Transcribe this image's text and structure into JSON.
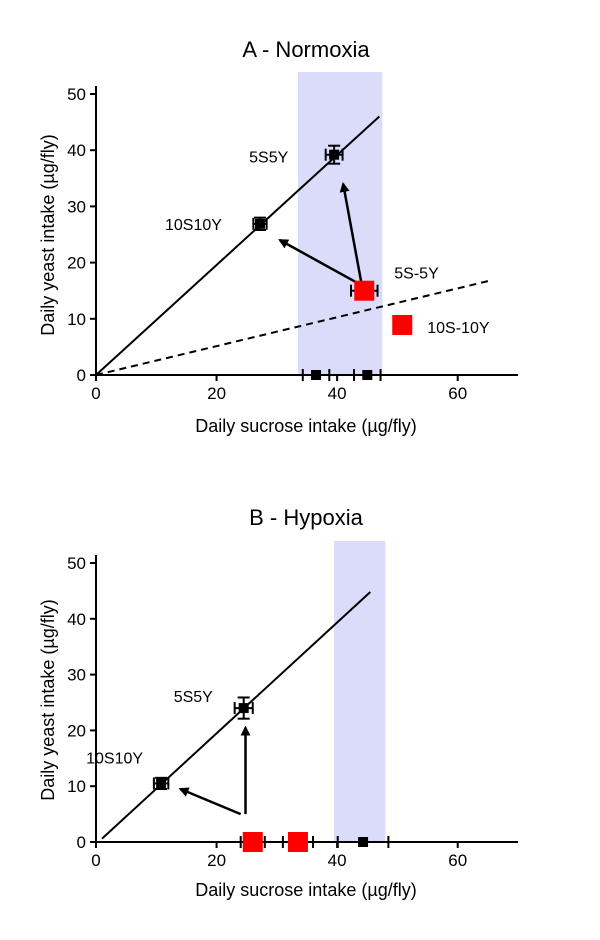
{
  "chart_data": [
    {
      "type": "scatter",
      "title": "A - Normoxia",
      "xlabel": "Daily sucrose intake (µg/fly)",
      "ylabel": "Daily yeast intake (µg/fly)",
      "xlim": [
        0,
        70
      ],
      "ylim": [
        0,
        50
      ],
      "xticks": [
        0,
        20,
        40,
        60
      ],
      "yticks": [
        0,
        10,
        20,
        30,
        40,
        50
      ],
      "shaded_band": {
        "x_from": 33.5,
        "x_to": 47.5,
        "color": "#dadcfa"
      },
      "lines": [
        {
          "style": "solid",
          "from": [
            0,
            0
          ],
          "to": [
            47,
            46
          ]
        },
        {
          "style": "dashed",
          "from": [
            0,
            0
          ],
          "to": [
            65,
            16.7
          ]
        }
      ],
      "points": [
        {
          "label": "5S5Y",
          "x": 39.5,
          "y": 39.2,
          "xerr": 1.4,
          "yerr": 1.6,
          "color": "#000000",
          "size": "small"
        },
        {
          "label": "10S10Y",
          "x": 27.2,
          "y": 26.9,
          "xerr": 1.1,
          "yerr": 1.1,
          "color": "#000000",
          "size": "small"
        },
        {
          "label": "5S-5Y",
          "x": 44.5,
          "y": 15.0,
          "xerr": 2.2,
          "yerr": 0.8,
          "color": "#ff0000",
          "size": "large"
        },
        {
          "label": "10S-10Y",
          "x": 50.8,
          "y": 8.9,
          "xerr": 1.2,
          "yerr": 0.6,
          "color": "#ff0000",
          "size": "large"
        },
        {
          "label": "",
          "x": 36.5,
          "y": 0,
          "xerr": 2.2,
          "yerr": 0,
          "color": "#000000",
          "size": "small"
        },
        {
          "label": "",
          "x": 45.0,
          "y": 0,
          "xerr": 2.2,
          "yerr": 0,
          "color": "#000000",
          "size": "small"
        }
      ],
      "arrows": [
        {
          "from": [
            44.0,
            16.0
          ],
          "to": [
            30.5,
            24.0
          ]
        },
        {
          "from": [
            44.0,
            16.5
          ],
          "to": [
            41.0,
            34.0
          ]
        }
      ]
    },
    {
      "type": "scatter",
      "title": "B - Hypoxia",
      "xlabel": "Daily sucrose intake (µg/fly)",
      "ylabel": "Daily yeast intake (µg/fly)",
      "xlim": [
        0,
        70
      ],
      "ylim": [
        0,
        50
      ],
      "xticks": [
        0,
        20,
        40,
        60
      ],
      "yticks": [
        0,
        10,
        20,
        30,
        40,
        50
      ],
      "shaded_band": {
        "x_from": 39.5,
        "x_to": 48.0,
        "color": "#dadcfa"
      },
      "lines": [
        {
          "style": "solid",
          "from": [
            1.0,
            0.6
          ],
          "to": [
            45.5,
            44.8
          ]
        }
      ],
      "points": [
        {
          "label": "5S5Y",
          "x": 24.5,
          "y": 24.0,
          "xerr": 1.5,
          "yerr": 1.9,
          "color": "#000000",
          "size": "small"
        },
        {
          "label": "10S10Y",
          "x": 10.8,
          "y": 10.5,
          "xerr": 1.2,
          "yerr": 1.0,
          "color": "#000000",
          "size": "small"
        },
        {
          "label": "",
          "x": 26.0,
          "y": 0,
          "xerr": 2.0,
          "yerr": 0,
          "color": "#ff0000",
          "size": "large"
        },
        {
          "label": "",
          "x": 33.5,
          "y": 0,
          "xerr": 2.5,
          "yerr": 0,
          "color": "#ff0000",
          "size": "large"
        },
        {
          "label": "",
          "x": 44.3,
          "y": 0,
          "xerr": 4.2,
          "yerr": 0,
          "color": "#000000",
          "size": "small"
        }
      ],
      "arrows": [
        {
          "from": [
            24.8,
            5.0
          ],
          "to": [
            24.8,
            20.5
          ]
        },
        {
          "from": [
            24.0,
            5.0
          ],
          "to": [
            14.0,
            9.5
          ]
        }
      ]
    }
  ]
}
